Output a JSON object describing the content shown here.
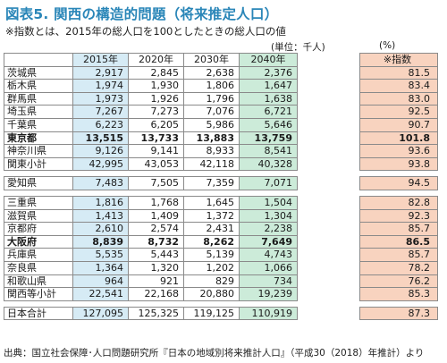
{
  "title": "図表5. 関西の構造的問題（将来推定人口）",
  "subtitle": "※指数とは、2015年の総人口を100としたときの総人口の値",
  "unit_label": "(単位：千人)",
  "index_unit_label": "(%)",
  "headers": [
    "2015年",
    "2020年",
    "2030年",
    "2040年"
  ],
  "index_header": "※指数",
  "groups": [
    [
      {
        "name": "茨城県",
        "values": [
          "2,917",
          "2,845",
          "2,638",
          "2,376"
        ],
        "index": "81.5",
        "bold": false
      },
      {
        "name": "栃木県",
        "values": [
          "1,974",
          "1,930",
          "1,806",
          "1,647"
        ],
        "index": "83.4",
        "bold": false
      },
      {
        "name": "群馬県",
        "values": [
          "1,973",
          "1,926",
          "1,796",
          "1,638"
        ],
        "index": "83.0",
        "bold": false
      },
      {
        "name": "埼玉県",
        "values": [
          "7,267",
          "7,273",
          "7,076",
          "6,721"
        ],
        "index": "92.5",
        "bold": false
      },
      {
        "name": "千葉県",
        "values": [
          "6,223",
          "6,205",
          "5,986",
          "5,646"
        ],
        "index": "90.7",
        "bold": false
      },
      {
        "name": "東京都",
        "values": [
          "13,515",
          "13,733",
          "13,883",
          "13,759"
        ],
        "index": "101.8",
        "bold": true
      },
      {
        "name": "神奈川県",
        "values": [
          "9,126",
          "9,141",
          "8,933",
          "8,541"
        ],
        "index": "93.6",
        "bold": false
      },
      {
        "name": "関東小計",
        "values": [
          "42,995",
          "43,053",
          "42,118",
          "40,328"
        ],
        "index": "93.8",
        "bold": false
      }
    ],
    [
      {
        "name": "愛知県",
        "values": [
          "7,483",
          "7,505",
          "7,359",
          "7,071"
        ],
        "index": "94.5",
        "bold": false
      }
    ],
    [
      {
        "name": "三重県",
        "values": [
          "1,816",
          "1,768",
          "1,645",
          "1,504"
        ],
        "index": "82.8",
        "bold": false
      },
      {
        "name": "滋賀県",
        "values": [
          "1,413",
          "1,409",
          "1,372",
          "1,304"
        ],
        "index": "92.3",
        "bold": false
      },
      {
        "name": "京都府",
        "values": [
          "2,610",
          "2,574",
          "2,431",
          "2,238"
        ],
        "index": "85.7",
        "bold": false
      },
      {
        "name": "大阪府",
        "values": [
          "8,839",
          "8,732",
          "8,262",
          "7,649"
        ],
        "index": "86.5",
        "bold": true
      },
      {
        "name": "兵庫県",
        "values": [
          "5,535",
          "5,443",
          "5,139",
          "4,743"
        ],
        "index": "85.7",
        "bold": false
      },
      {
        "name": "奈良県",
        "values": [
          "1,364",
          "1,320",
          "1,202",
          "1,066"
        ],
        "index": "78.2",
        "bold": false
      },
      {
        "name": "和歌山県",
        "values": [
          "964",
          "921",
          "829",
          "734"
        ],
        "index": "76.2",
        "bold": false
      },
      {
        "name": "関西等小計",
        "values": [
          "22,541",
          "22,168",
          "20,880",
          "19,239"
        ],
        "index": "85.3",
        "bold": false
      }
    ],
    [
      {
        "name": "日本合計",
        "values": [
          "127,095",
          "125,325",
          "119,125",
          "110,919"
        ],
        "index": "87.3",
        "bold": false
      }
    ]
  ],
  "source": "出典：国立社会保障･人口問題研究所『日本の地域別将来推計人口』（平成30（2018）年推計）より"
}
